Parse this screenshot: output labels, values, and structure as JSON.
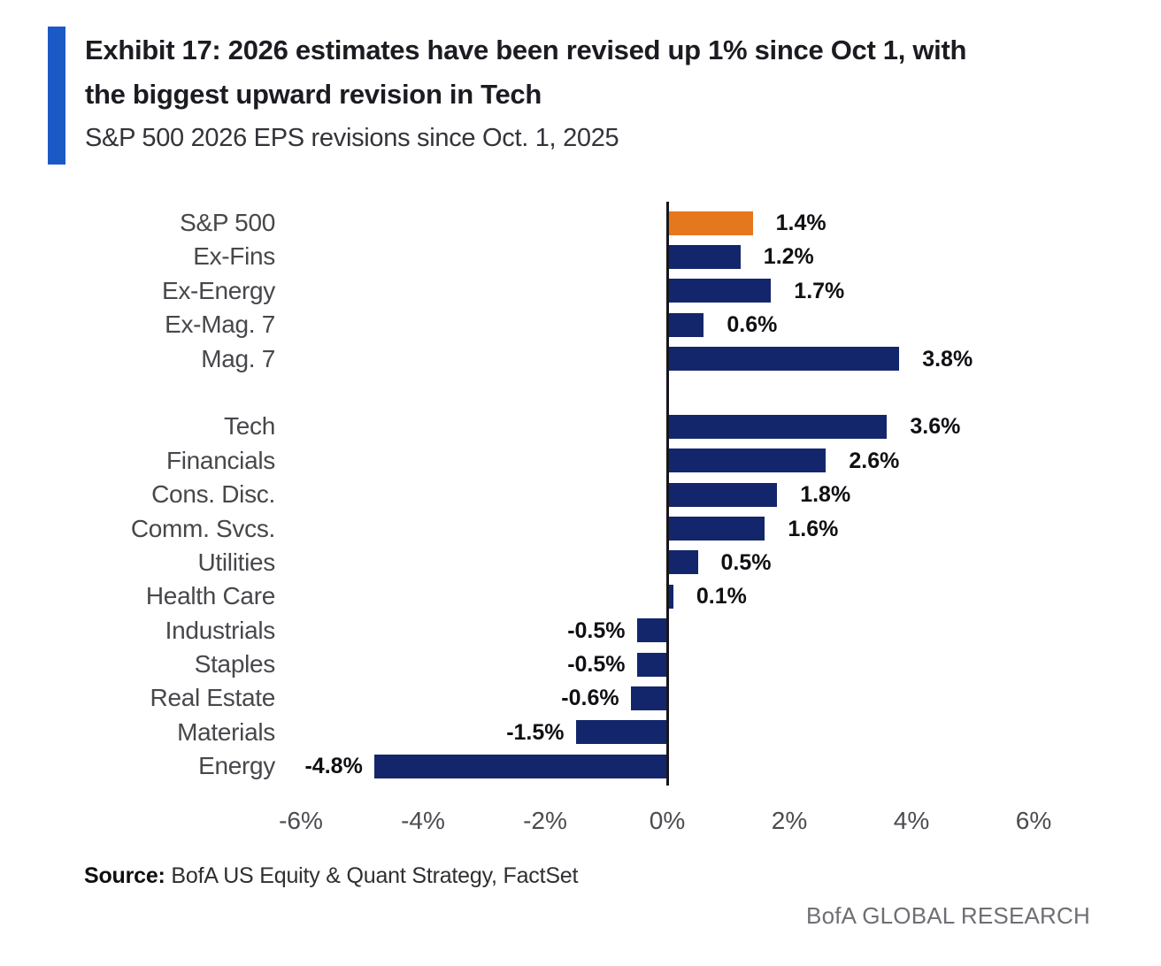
{
  "header": {
    "title_lines": [
      "Exhibit 17: 2026 estimates have been revised up 1% since Oct 1, with",
      "the biggest upward revision in Tech"
    ],
    "subtitle": "S&P 500 2026 EPS revisions since Oct. 1, 2025"
  },
  "chart_data": {
    "type": "bar",
    "orientation": "horizontal",
    "title": "Exhibit 17: 2026 estimates have been revised up 1% since Oct 1, with the biggest upward revision in Tech",
    "subtitle": "S&P 500 2026 EPS revisions since Oct. 1, 2025",
    "xlim": [
      -6,
      6
    ],
    "x_tick_values": [
      -6,
      -4,
      -2,
      0,
      2,
      4,
      6
    ],
    "x_tick_labels": [
      "-6%",
      "-4%",
      "-2%",
      "0%",
      "2%",
      "4%",
      "6%"
    ],
    "bar_color": "#14266b",
    "highlight_color": "#e5771e",
    "grid": false,
    "legend": "none",
    "groups": [
      {
        "name": "aggregates",
        "rows": [
          {
            "label": "S&P 500",
            "value": 1.4,
            "display": "1.4%",
            "highlight": true
          },
          {
            "label": "Ex-Fins",
            "value": 1.2,
            "display": "1.2%"
          },
          {
            "label": "Ex-Energy",
            "value": 1.7,
            "display": "1.7%"
          },
          {
            "label": "Ex-Mag. 7",
            "value": 0.6,
            "display": "0.6%"
          },
          {
            "label": "Mag. 7",
            "value": 3.8,
            "display": "3.8%"
          }
        ]
      },
      {
        "name": "sectors",
        "rows": [
          {
            "label": "Tech",
            "value": 3.6,
            "display": "3.6%"
          },
          {
            "label": "Financials",
            "value": 2.6,
            "display": "2.6%"
          },
          {
            "label": "Cons. Disc.",
            "value": 1.8,
            "display": "1.8%"
          },
          {
            "label": "Comm. Svcs.",
            "value": 1.6,
            "display": "1.6%"
          },
          {
            "label": "Utilities",
            "value": 0.5,
            "display": "0.5%"
          },
          {
            "label": "Health Care",
            "value": 0.1,
            "display": "0.1%"
          },
          {
            "label": "Industrials",
            "value": -0.5,
            "display": "-0.5%"
          },
          {
            "label": "Staples",
            "value": -0.5,
            "display": "-0.5%"
          },
          {
            "label": "Real Estate",
            "value": -0.6,
            "display": "-0.6%"
          },
          {
            "label": "Materials",
            "value": -1.5,
            "display": "-1.5%"
          },
          {
            "label": "Energy",
            "value": -4.8,
            "display": "-4.8%"
          }
        ]
      }
    ]
  },
  "footer": {
    "source_label": "Source:",
    "source_text": " BofA US Equity & Quant Strategy, FactSet",
    "brand": "BofA GLOBAL RESEARCH"
  },
  "colors": {
    "accent_bar": "#1b5ac6",
    "bar_navy": "#14266b",
    "bar_orange": "#e5771e",
    "axis_line": "#16161b"
  }
}
